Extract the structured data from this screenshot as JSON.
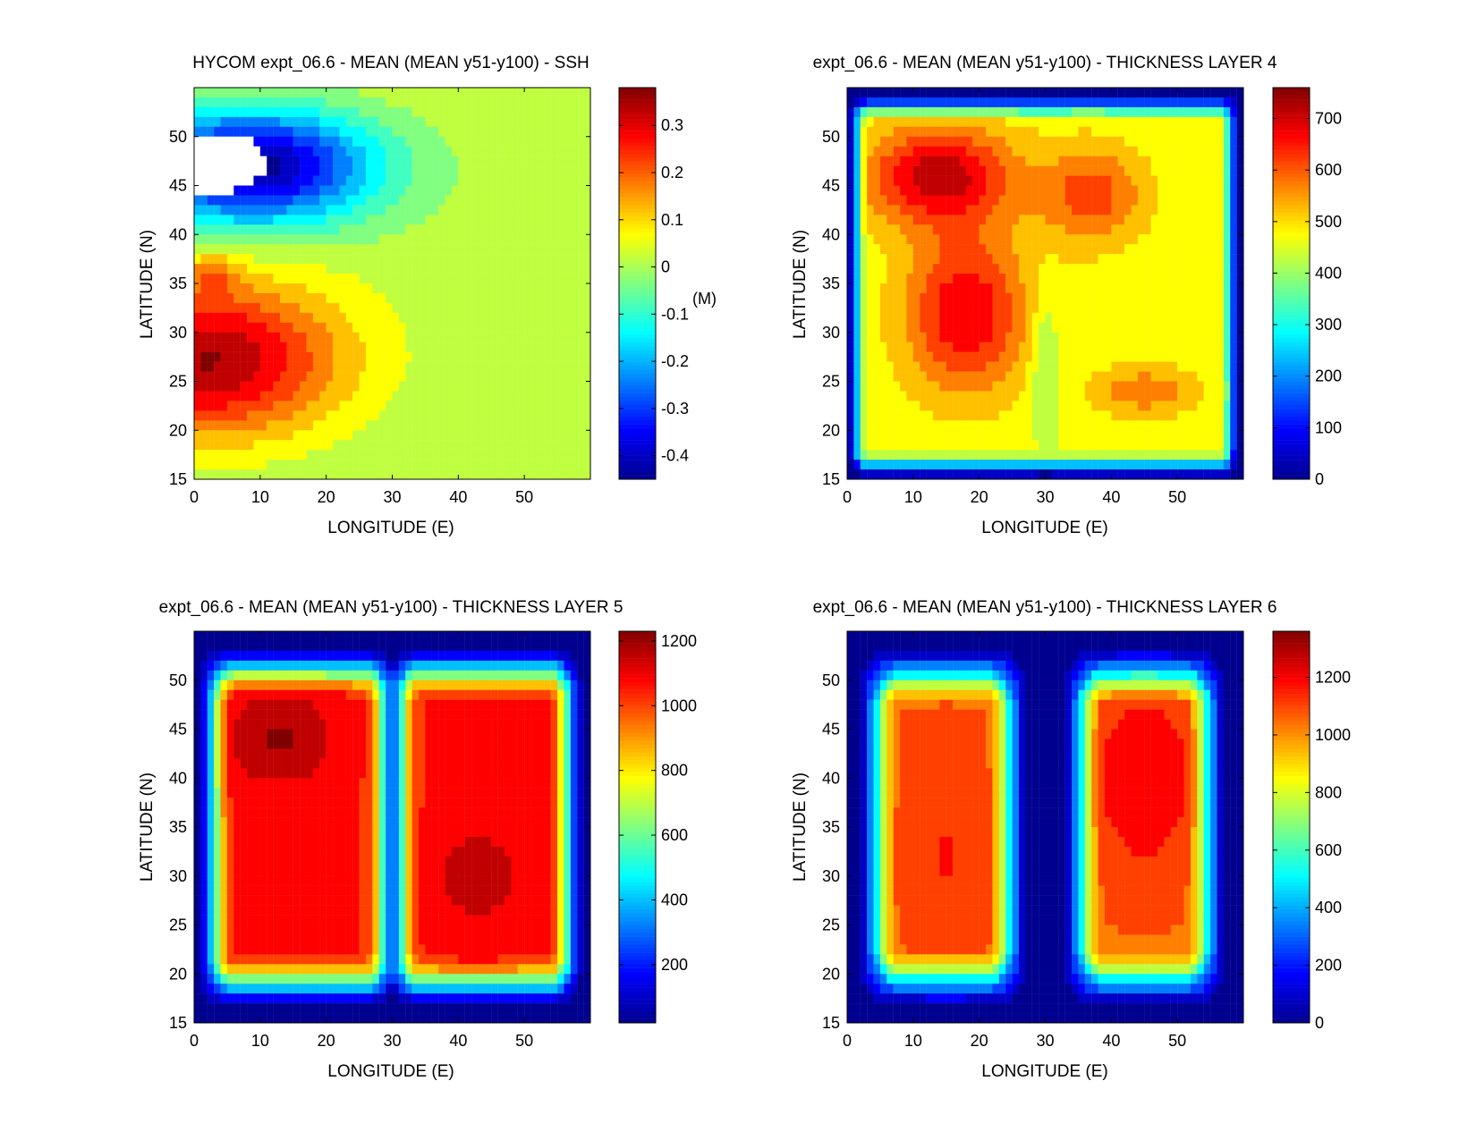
{
  "colormap": [
    "#00008f",
    "#0000ff",
    "#0080ff",
    "#00ffff",
    "#80ff80",
    "#ffff00",
    "#ff8000",
    "#ff0000",
    "#800000"
  ],
  "chart_data": [
    {
      "type": "heatmap",
      "title": "HYCOM expt_06.6 - MEAN (MEAN y51-y100) - SSH",
      "xlabel": "LONGITUDE (E)",
      "ylabel": "LATITUDE (N)",
      "xlim": [
        0,
        60
      ],
      "ylim": [
        15,
        55
      ],
      "xticks": [
        0,
        10,
        20,
        30,
        40,
        50
      ],
      "yticks": [
        15,
        20,
        25,
        30,
        35,
        40,
        45,
        50
      ],
      "field": "ssh",
      "colorbar": {
        "min": -0.45,
        "max": 0.38,
        "ticks": [
          -0.4,
          -0.3,
          -0.2,
          -0.1,
          0,
          0.1,
          0.2,
          0.3
        ],
        "tick_labels": [
          "-0.4",
          "-0.3",
          "-0.2",
          "-0.1",
          "0",
          "0.1",
          "0.2",
          "0.3"
        ],
        "unit": "(M)"
      },
      "value_range": [
        -0.45,
        0.38
      ]
    },
    {
      "type": "heatmap",
      "title": "expt_06.6 - MEAN (MEAN y51-y100) - THICKNESS LAYER 4",
      "xlabel": "LONGITUDE (E)",
      "ylabel": "LATITUDE (N)",
      "xlim": [
        0,
        60
      ],
      "ylim": [
        15,
        55
      ],
      "xticks": [
        0,
        10,
        20,
        30,
        40,
        50
      ],
      "yticks": [
        15,
        20,
        25,
        30,
        35,
        40,
        45,
        50
      ],
      "field": "layer4",
      "colorbar": {
        "min": 0,
        "max": 760,
        "ticks": [
          0,
          100,
          200,
          300,
          400,
          500,
          600,
          700
        ],
        "tick_labels": [
          "0",
          "100",
          "200",
          "300",
          "400",
          "500",
          "600",
          "700"
        ],
        "unit": ""
      },
      "value_range": [
        0,
        740
      ]
    },
    {
      "type": "heatmap",
      "title": "expt_06.6 - MEAN (MEAN y51-y100) - THICKNESS LAYER 5",
      "xlabel": "LONGITUDE (E)",
      "ylabel": "LATITUDE (N)",
      "xlim": [
        0,
        60
      ],
      "ylim": [
        15,
        55
      ],
      "xticks": [
        0,
        10,
        20,
        30,
        40,
        50
      ],
      "yticks": [
        15,
        20,
        25,
        30,
        35,
        40,
        45,
        50
      ],
      "field": "layer5",
      "colorbar": {
        "min": 20,
        "max": 1230,
        "ticks": [
          200,
          400,
          600,
          800,
          1000,
          1200
        ],
        "tick_labels": [
          "200",
          "400",
          "600",
          "800",
          "1000",
          "1200"
        ],
        "unit": ""
      },
      "value_range": [
        20,
        1200
      ]
    },
    {
      "type": "heatmap",
      "title": "expt_06.6 - MEAN (MEAN y51-y100) - THICKNESS LAYER 6",
      "xlabel": "LONGITUDE (E)",
      "ylabel": "LATITUDE (N)",
      "xlim": [
        0,
        60
      ],
      "ylim": [
        15,
        55
      ],
      "xticks": [
        0,
        10,
        20,
        30,
        40,
        50
      ],
      "yticks": [
        15,
        20,
        25,
        30,
        35,
        40,
        45,
        50
      ],
      "field": "layer6",
      "colorbar": {
        "min": 0,
        "max": 1360,
        "ticks": [
          0,
          200,
          400,
          600,
          800,
          1000,
          1200
        ],
        "tick_labels": [
          "0",
          "200",
          "400",
          "600",
          "800",
          "1000",
          "1200"
        ],
        "unit": ""
      },
      "value_range": [
        0,
        1330
      ]
    }
  ]
}
